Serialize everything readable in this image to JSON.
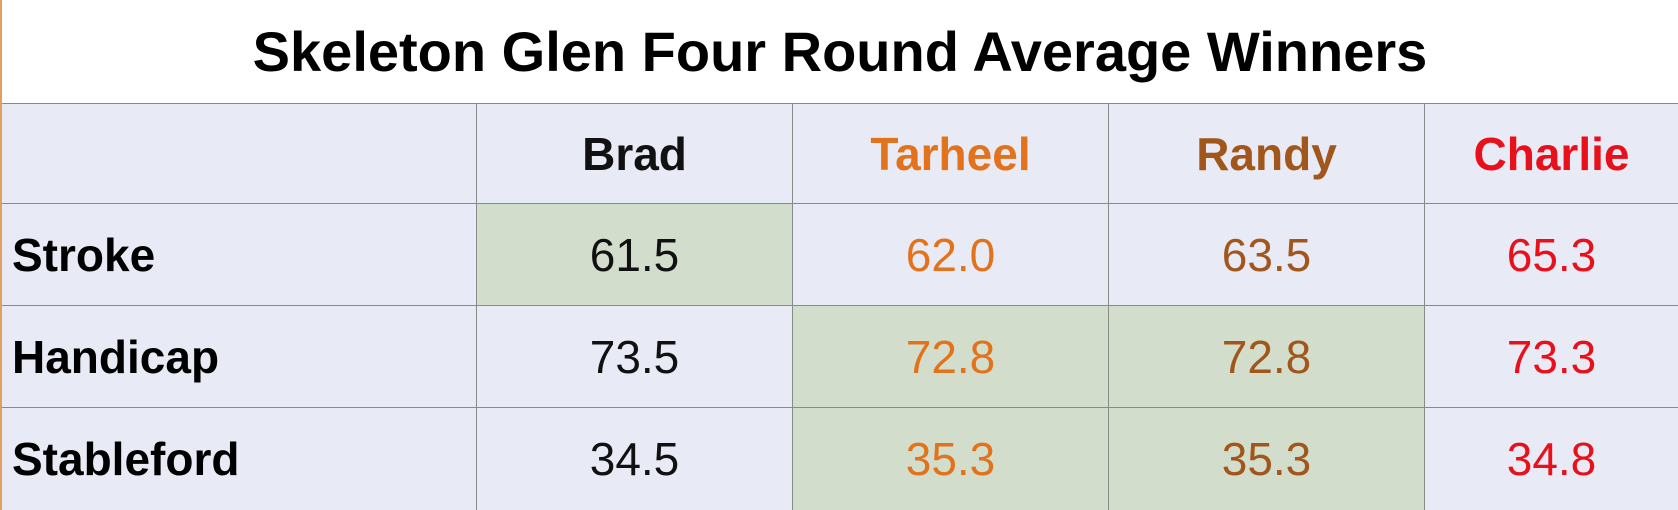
{
  "header": {
    "title": "Skeleton Glen Four Round Average Winners"
  },
  "table": {
    "columns": [
      {
        "name": "Brad",
        "color": "#111111"
      },
      {
        "name": "Tarheel",
        "color": "#e2731c"
      },
      {
        "name": "Randy",
        "color": "#a1561c"
      },
      {
        "name": "Charlie",
        "color": "#e8101a"
      }
    ],
    "highlight_color": "#d3ddcc",
    "rows": [
      {
        "label": "Stroke",
        "cells": [
          {
            "text": "61.5",
            "highlight": true
          },
          {
            "text": "62.0",
            "highlight": false
          },
          {
            "text": "63.5",
            "highlight": false
          },
          {
            "text": "65.3",
            "highlight": false
          }
        ]
      },
      {
        "label": "Handicap",
        "cells": [
          {
            "text": "73.5",
            "highlight": false
          },
          {
            "text": "72.8",
            "highlight": true
          },
          {
            "text": "72.8",
            "highlight": true
          },
          {
            "text": "73.3",
            "highlight": false
          }
        ]
      },
      {
        "label": "Stableford",
        "cells": [
          {
            "text": "34.5",
            "highlight": false
          },
          {
            "text": "35.3",
            "highlight": true
          },
          {
            "text": "35.3",
            "highlight": true
          },
          {
            "text": "34.8",
            "highlight": false
          }
        ]
      }
    ]
  }
}
